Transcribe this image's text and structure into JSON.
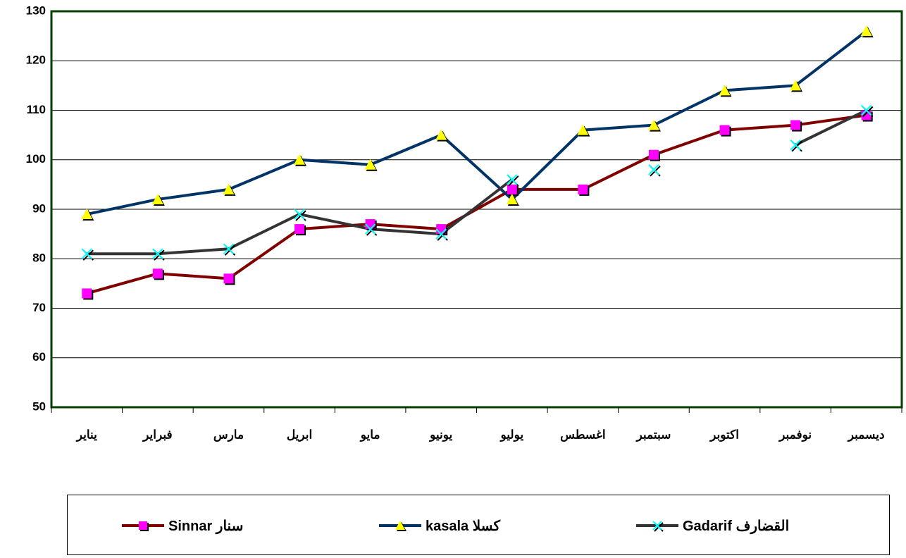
{
  "chart_data": {
    "type": "line",
    "categories": [
      "يناير",
      "فبراير",
      "مارس",
      "ابريل",
      "مايو",
      "يونيو",
      "يوليو",
      "اغسطس",
      "سبتمبر",
      "اكتوبر",
      "نوفمبر",
      "ديسمبر"
    ],
    "series": [
      {
        "name": "سنار Sinnar",
        "color": "#800000",
        "marker": "square",
        "marker_color": "#ff00ff",
        "values": [
          73,
          77,
          76,
          86,
          87,
          86,
          94,
          94,
          101,
          106,
          107,
          109
        ]
      },
      {
        "name": "كسلا kasala",
        "color": "#003366",
        "marker": "triangle",
        "marker_color": "#ffff00",
        "values": [
          89,
          92,
          94,
          100,
          99,
          105,
          92,
          106,
          107,
          114,
          115,
          126
        ]
      },
      {
        "name": "القضارف Gadarif",
        "color": "#333333",
        "marker": "x",
        "marker_color": "#00ffff",
        "values": [
          81,
          81,
          82,
          89,
          86,
          85,
          96,
          null,
          98,
          null,
          103,
          110
        ]
      }
    ],
    "ylim": [
      50,
      130
    ],
    "yticks": [
      50,
      60,
      70,
      80,
      90,
      100,
      110,
      120,
      130
    ],
    "grid": true,
    "plot_border_color": "#004000"
  }
}
